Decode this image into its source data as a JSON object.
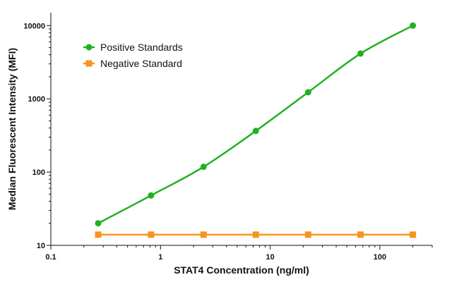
{
  "chart_data": {
    "type": "line",
    "xlabel": "STAT4 Concentration (ng/ml)",
    "ylabel": "Median Fluorescent Intensity (MFI)",
    "x_scale": "log",
    "y_scale": "log",
    "xlim": [
      0.1,
      300
    ],
    "ylim": [
      10,
      15000
    ],
    "x_ticks": [
      {
        "value": 0.1,
        "label": "0.1"
      },
      {
        "value": 1,
        "label": "1"
      },
      {
        "value": 10,
        "label": "10"
      },
      {
        "value": 100,
        "label": "100"
      }
    ],
    "y_ticks": [
      {
        "value": 10,
        "label": "10"
      },
      {
        "value": 100,
        "label": "100"
      },
      {
        "value": 1000,
        "label": "1000"
      },
      {
        "value": 10000,
        "label": "10000"
      }
    ],
    "grid": false,
    "legend_position": "top-left",
    "series": [
      {
        "name": "Positive Standards",
        "marker": "circle",
        "color": "#22b022",
        "x": [
          0.27,
          0.82,
          2.47,
          7.4,
          22.2,
          66.7,
          200
        ],
        "y": [
          20,
          48,
          118,
          365,
          1230,
          4150,
          10000
        ]
      },
      {
        "name": "Negative Standard",
        "marker": "square",
        "color": "#f7941d",
        "x": [
          0.27,
          0.82,
          2.47,
          7.4,
          22.2,
          66.7,
          200
        ],
        "y": [
          14,
          14,
          14,
          14,
          14,
          14,
          14
        ]
      }
    ]
  }
}
